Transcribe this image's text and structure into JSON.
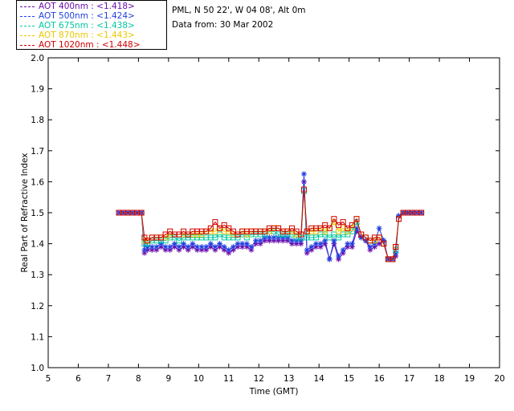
{
  "header": {
    "site": "PML, N 50 22', W 04 08', Alt 0m",
    "date": "Data from: 30 Mar 2002"
  },
  "legend": [
    {
      "label": "AOT  400nm : <1.418>",
      "color": "#6a0dad"
    },
    {
      "label": "AOT  500nm : <1.424>",
      "color": "#1f3fe0"
    },
    {
      "label": "AOT  675nm : <1.438>",
      "color": "#00c8a0"
    },
    {
      "label": "AOT  870nm : <1.443>",
      "color": "#e6c800"
    },
    {
      "label": "AOT 1020nm : <1.448>",
      "color": "#d00000"
    }
  ],
  "chart_data": {
    "type": "line",
    "title": "",
    "xlabel": "Time (GMT)",
    "ylabel": "Real Part of Refractive Index",
    "xlim": [
      5,
      20
    ],
    "ylim": [
      1.0,
      2.0
    ],
    "xticks": [
      "5",
      "6",
      "7",
      "8",
      "9",
      "10",
      "11",
      "12",
      "13",
      "14",
      "15",
      "16",
      "17",
      "18",
      "19",
      "20"
    ],
    "yticks": [
      "1.0",
      "1.1",
      "1.2",
      "1.3",
      "1.4",
      "1.5",
      "1.6",
      "1.7",
      "1.8",
      "1.9",
      "2.0"
    ],
    "x": [
      7.35,
      7.5,
      7.65,
      7.8,
      7.95,
      8.1,
      8.2,
      8.3,
      8.45,
      8.6,
      8.75,
      8.9,
      9.05,
      9.2,
      9.35,
      9.5,
      9.65,
      9.8,
      9.95,
      10.1,
      10.25,
      10.4,
      10.55,
      10.7,
      10.85,
      11.0,
      11.15,
      11.3,
      11.45,
      11.6,
      11.75,
      11.9,
      12.05,
      12.2,
      12.35,
      12.5,
      12.65,
      12.8,
      12.95,
      13.1,
      13.25,
      13.4,
      13.5,
      13.6,
      13.75,
      13.9,
      14.05,
      14.2,
      14.35,
      14.5,
      14.65,
      14.8,
      14.95,
      15.1,
      15.25,
      15.4,
      15.55,
      15.7,
      15.85,
      16.0,
      16.15,
      16.3,
      16.45,
      16.55,
      16.65,
      16.8,
      16.95,
      17.1,
      17.25,
      17.4
    ],
    "series": [
      {
        "name": "AOT 400nm",
        "color": "#6a0dad",
        "marker": "star",
        "values": [
          1.5,
          1.5,
          1.5,
          1.5,
          1.5,
          1.5,
          1.37,
          1.38,
          1.38,
          1.38,
          1.39,
          1.38,
          1.38,
          1.39,
          1.38,
          1.39,
          1.38,
          1.39,
          1.38,
          1.38,
          1.38,
          1.39,
          1.38,
          1.39,
          1.38,
          1.37,
          1.38,
          1.39,
          1.39,
          1.39,
          1.38,
          1.4,
          1.4,
          1.41,
          1.41,
          1.41,
          1.41,
          1.41,
          1.41,
          1.4,
          1.4,
          1.4,
          1.6,
          1.37,
          1.38,
          1.39,
          1.39,
          1.4,
          1.35,
          1.4,
          1.35,
          1.37,
          1.39,
          1.39,
          1.44,
          1.42,
          1.41,
          1.38,
          1.39,
          1.4,
          1.41,
          1.35,
          1.35,
          1.36,
          1.49,
          1.5,
          1.5,
          1.5,
          1.5,
          1.5
        ]
      },
      {
        "name": "AOT 500nm",
        "color": "#1f3fe0",
        "marker": "star",
        "values": [
          1.5,
          1.5,
          1.5,
          1.5,
          1.5,
          1.5,
          1.38,
          1.39,
          1.39,
          1.39,
          1.4,
          1.39,
          1.39,
          1.4,
          1.39,
          1.4,
          1.39,
          1.4,
          1.39,
          1.39,
          1.39,
          1.4,
          1.39,
          1.4,
          1.39,
          1.38,
          1.39,
          1.4,
          1.4,
          1.4,
          1.39,
          1.41,
          1.41,
          1.42,
          1.42,
          1.42,
          1.42,
          1.42,
          1.42,
          1.41,
          1.41,
          1.41,
          1.625,
          1.38,
          1.39,
          1.4,
          1.4,
          1.41,
          1.35,
          1.41,
          1.36,
          1.38,
          1.4,
          1.4,
          1.45,
          1.42,
          1.41,
          1.39,
          1.4,
          1.45,
          1.41,
          1.35,
          1.35,
          1.37,
          1.49,
          1.5,
          1.5,
          1.5,
          1.5,
          1.5
        ]
      },
      {
        "name": "AOT 675nm",
        "color": "#00c8a0",
        "marker": "square",
        "values": [
          1.5,
          1.5,
          1.5,
          1.5,
          1.5,
          1.5,
          1.4,
          1.4,
          1.41,
          1.41,
          1.41,
          1.41,
          1.42,
          1.42,
          1.41,
          1.42,
          1.42,
          1.42,
          1.42,
          1.42,
          1.42,
          1.42,
          1.42,
          1.43,
          1.42,
          1.42,
          1.42,
          1.42,
          1.43,
          1.42,
          1.43,
          1.43,
          1.43,
          1.43,
          1.44,
          1.44,
          1.43,
          1.43,
          1.43,
          1.43,
          1.42,
          1.42,
          1.57,
          1.42,
          1.42,
          1.42,
          1.43,
          1.43,
          1.42,
          1.43,
          1.42,
          1.43,
          1.43,
          1.44,
          1.47,
          1.43,
          1.42,
          1.41,
          1.41,
          1.42,
          1.4,
          1.35,
          1.35,
          1.38,
          1.48,
          1.5,
          1.5,
          1.5,
          1.5,
          1.5
        ]
      },
      {
        "name": "AOT 870nm",
        "color": "#e6c800",
        "marker": "square",
        "values": [
          1.5,
          1.5,
          1.5,
          1.5,
          1.5,
          1.5,
          1.41,
          1.41,
          1.42,
          1.42,
          1.42,
          1.42,
          1.43,
          1.43,
          1.43,
          1.43,
          1.43,
          1.43,
          1.43,
          1.43,
          1.44,
          1.44,
          1.44,
          1.45,
          1.44,
          1.44,
          1.43,
          1.43,
          1.44,
          1.43,
          1.44,
          1.44,
          1.44,
          1.44,
          1.44,
          1.45,
          1.45,
          1.44,
          1.44,
          1.44,
          1.43,
          1.43,
          1.575,
          1.44,
          1.44,
          1.44,
          1.45,
          1.44,
          1.45,
          1.47,
          1.44,
          1.45,
          1.44,
          1.45,
          1.48,
          1.43,
          1.42,
          1.41,
          1.41,
          1.42,
          1.4,
          1.35,
          1.35,
          1.39,
          1.48,
          1.5,
          1.5,
          1.5,
          1.5,
          1.5
        ]
      },
      {
        "name": "AOT 1020nm",
        "color": "#d00000",
        "marker": "square",
        "values": [
          1.5,
          1.5,
          1.5,
          1.5,
          1.5,
          1.5,
          1.42,
          1.41,
          1.42,
          1.42,
          1.42,
          1.43,
          1.44,
          1.43,
          1.43,
          1.44,
          1.43,
          1.44,
          1.44,
          1.44,
          1.44,
          1.45,
          1.47,
          1.45,
          1.46,
          1.45,
          1.44,
          1.43,
          1.44,
          1.44,
          1.44,
          1.44,
          1.44,
          1.44,
          1.45,
          1.45,
          1.45,
          1.44,
          1.44,
          1.45,
          1.44,
          1.43,
          1.575,
          1.44,
          1.45,
          1.45,
          1.45,
          1.46,
          1.45,
          1.48,
          1.46,
          1.47,
          1.45,
          1.46,
          1.48,
          1.43,
          1.42,
          1.41,
          1.42,
          1.42,
          1.4,
          1.35,
          1.35,
          1.39,
          1.48,
          1.5,
          1.5,
          1.5,
          1.5,
          1.5
        ]
      }
    ]
  }
}
